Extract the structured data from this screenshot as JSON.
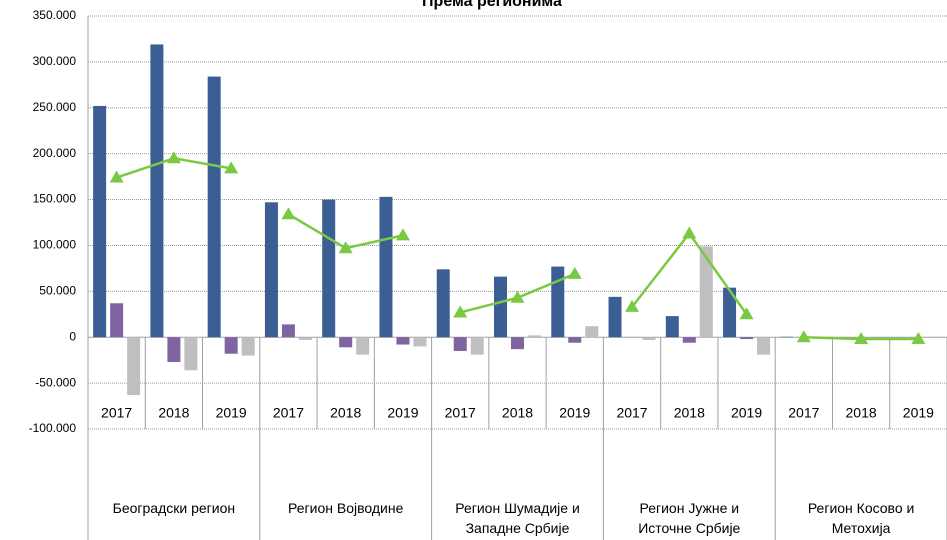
{
  "chart_data": {
    "type": "bar_line",
    "title": "Према регионима",
    "categories": [
      "2017",
      "2018",
      "2019",
      "2017",
      "2018",
      "2019",
      "2017",
      "2018",
      "2019",
      "2017",
      "2018",
      "2019",
      "2017",
      "2018",
      "2019"
    ],
    "groups": [
      "Београдски регион",
      "Регион Војводине",
      "Регион Шумадије и Западне Србије",
      "Регион Јужне и Источне Србије",
      "Регион Косово и Метохија"
    ],
    "series": [
      {
        "color": "#3b5f95",
        "values": [
          252000,
          319000,
          284000,
          147000,
          150000,
          153000,
          74000,
          66000,
          77000,
          44000,
          23000,
          54000,
          500,
          0,
          0
        ]
      },
      {
        "color": "#8064a2",
        "values": [
          37000,
          -27000,
          -18000,
          14000,
          -11000,
          -8000,
          -15000,
          -13000,
          -6000,
          0,
          -6000,
          -2000,
          0,
          0,
          0
        ]
      },
      {
        "color": "#bfbfbf",
        "values": [
          -63000,
          -36000,
          -20000,
          -3000,
          -19000,
          -10000,
          -19000,
          2000,
          12000,
          -3000,
          99000,
          -19000,
          0,
          0,
          0
        ]
      },
      {
        "type": "line",
        "color": "#7ac943",
        "values": [
          174000,
          195000,
          184000,
          134000,
          97000,
          111000,
          27000,
          43000,
          69000,
          33000,
          113000,
          25000,
          0,
          -2000,
          -2000
        ]
      }
    ],
    "ylim": [
      -100000,
      350000
    ],
    "yticks": [
      {
        "value": -100000,
        "label": "-100.000"
      },
      {
        "value": -50000,
        "label": "-50.000"
      },
      0,
      {
        "value": 50000,
        "label": "50.000"
      },
      {
        "value": 100000,
        "label": "100.000"
      },
      {
        "value": 150000,
        "label": "150.000"
      },
      {
        "value": 200000,
        "label": "200.000"
      },
      {
        "value": 250000,
        "label": "250.000"
      },
      {
        "value": 300000,
        "label": "300.000"
      },
      {
        "value": 350000,
        "label": "350.000"
      }
    ],
    "grid": true
  }
}
